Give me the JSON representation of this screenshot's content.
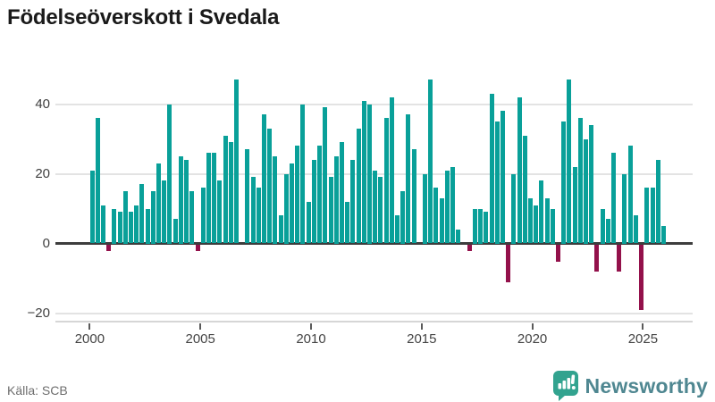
{
  "title": "Födelseöverskott i Svedala",
  "footer": {
    "source": "Källa: SCB",
    "brand": "Newsworthy"
  },
  "chart_data": {
    "type": "bar",
    "title": "Födelseöverskott i Svedala",
    "frequency": "quarterly",
    "period_start": "2000 Q1",
    "period_end": "2025 Q4",
    "x_tick_years": [
      "2000",
      "2005",
      "2010",
      "2015",
      "2020",
      "2025"
    ],
    "y_ticks": [
      40,
      20,
      0,
      -20
    ],
    "y_tick_labels": [
      "40",
      "20",
      "0",
      "−20"
    ],
    "ylim": [
      -22.5,
      49
    ],
    "grid": "horizontal",
    "legend": "none",
    "colors": {
      "positive": "#09a099",
      "negative": "#93114b",
      "zero_axis": "#3d3d3d",
      "gridline": "#e3e3e3"
    },
    "series": [
      {
        "name": "Födelseöverskott",
        "values_by_year": [
          {
            "year": 2000,
            "quarters": [
              21,
              36,
              11,
              -2
            ]
          },
          {
            "year": 2001,
            "quarters": [
              10,
              9,
              15,
              9
            ]
          },
          {
            "year": 2002,
            "quarters": [
              11,
              17,
              10,
              15
            ]
          },
          {
            "year": 2003,
            "quarters": [
              23,
              18,
              40,
              7
            ]
          },
          {
            "year": 2004,
            "quarters": [
              25,
              24,
              15,
              -2
            ]
          },
          {
            "year": 2005,
            "quarters": [
              16,
              26,
              26,
              18
            ]
          },
          {
            "year": 2006,
            "quarters": [
              31,
              29,
              47,
              0
            ]
          },
          {
            "year": 2007,
            "quarters": [
              27,
              19,
              16,
              37
            ]
          },
          {
            "year": 2008,
            "quarters": [
              33,
              25,
              8,
              20
            ]
          },
          {
            "year": 2009,
            "quarters": [
              23,
              28,
              40,
              12
            ]
          },
          {
            "year": 2010,
            "quarters": [
              24,
              28,
              39,
              19
            ]
          },
          {
            "year": 2011,
            "quarters": [
              25,
              29,
              12,
              24
            ]
          },
          {
            "year": 2012,
            "quarters": [
              33,
              41,
              40,
              21
            ]
          },
          {
            "year": 2013,
            "quarters": [
              19,
              36,
              42,
              8
            ]
          },
          {
            "year": 2014,
            "quarters": [
              15,
              37,
              27,
              0
            ]
          },
          {
            "year": 2015,
            "quarters": [
              20,
              47,
              16,
              13
            ]
          },
          {
            "year": 2016,
            "quarters": [
              21,
              22,
              4,
              0
            ]
          },
          {
            "year": 2017,
            "quarters": [
              -2,
              10,
              10,
              9
            ]
          },
          {
            "year": 2018,
            "quarters": [
              43,
              35,
              38,
              -11
            ]
          },
          {
            "year": 2019,
            "quarters": [
              20,
              42,
              31,
              13
            ]
          },
          {
            "year": 2020,
            "quarters": [
              11,
              18,
              13,
              10
            ]
          },
          {
            "year": 2021,
            "quarters": [
              -5,
              35,
              47,
              22
            ]
          },
          {
            "year": 2022,
            "quarters": [
              36,
              30,
              34,
              -8
            ]
          },
          {
            "year": 2023,
            "quarters": [
              10,
              7,
              26,
              -8
            ]
          },
          {
            "year": 2024,
            "quarters": [
              20,
              28,
              8,
              -19
            ]
          },
          {
            "year": 2025,
            "quarters": [
              16,
              16,
              24,
              5
            ]
          }
        ]
      }
    ]
  }
}
